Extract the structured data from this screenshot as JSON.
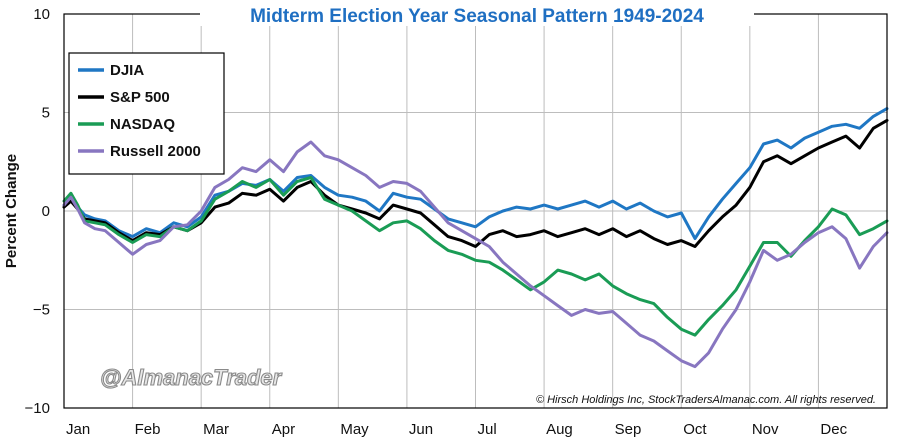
{
  "chart_data": {
    "type": "line",
    "title": "Midterm Election Year Seasonal Pattern 1949-2024",
    "xlabel": "",
    "ylabel": "Percent Change",
    "ylim": [
      -10,
      10
    ],
    "yticks": [
      10,
      5,
      0,
      -5,
      -10
    ],
    "ytick_labels": [
      "10",
      "5",
      "0",
      "−5",
      "−10"
    ],
    "categories": [
      "Jan",
      "Feb",
      "Mar",
      "Apr",
      "May",
      "Jun",
      "Jul",
      "Aug",
      "Sep",
      "Oct",
      "Nov",
      "Dec"
    ],
    "x_range": [
      0,
      12
    ],
    "legend_position": "top-left",
    "annotation": "© Hirsch Holdings Inc, StockTradersAlmanac.com. All rights reserved.",
    "watermark": "@AlmanacTrader",
    "series": [
      {
        "name": "DJIA",
        "color": "#1f77c4",
        "x": [
          0,
          0.1,
          0.2,
          0.3,
          0.45,
          0.6,
          0.8,
          1.0,
          1.2,
          1.4,
          1.6,
          1.8,
          2.0,
          2.2,
          2.4,
          2.6,
          2.8,
          3.0,
          3.2,
          3.4,
          3.6,
          3.8,
          4.0,
          4.2,
          4.4,
          4.6,
          4.8,
          5.0,
          5.2,
          5.4,
          5.6,
          5.8,
          6.0,
          6.2,
          6.4,
          6.6,
          6.8,
          7.0,
          7.2,
          7.4,
          7.6,
          7.8,
          8.0,
          8.2,
          8.4,
          8.6,
          8.8,
          9.0,
          9.2,
          9.4,
          9.6,
          9.8,
          10.0,
          10.2,
          10.4,
          10.6,
          10.8,
          11.0,
          11.2,
          11.4,
          11.6,
          11.8,
          12.0
        ],
        "values": [
          0.3,
          0.8,
          0.2,
          -0.2,
          -0.4,
          -0.5,
          -1.0,
          -1.3,
          -0.9,
          -1.1,
          -0.6,
          -0.8,
          -0.3,
          0.8,
          1.0,
          1.4,
          1.3,
          1.6,
          1.0,
          1.7,
          1.8,
          1.2,
          0.8,
          0.7,
          0.5,
          0.0,
          0.9,
          0.7,
          0.6,
          0.1,
          -0.4,
          -0.6,
          -0.8,
          -0.3,
          0.0,
          0.2,
          0.1,
          0.3,
          0.1,
          0.3,
          0.5,
          0.2,
          0.5,
          0.1,
          0.4,
          0.0,
          -0.3,
          -0.1,
          -1.4,
          -0.3,
          0.6,
          1.4,
          2.2,
          3.4,
          3.6,
          3.2,
          3.7,
          4.0,
          4.3,
          4.4,
          4.2,
          4.8,
          5.2
        ]
      },
      {
        "name": "S&P 500",
        "color": "#000000",
        "x": [
          0,
          0.1,
          0.2,
          0.3,
          0.45,
          0.6,
          0.8,
          1.0,
          1.2,
          1.4,
          1.6,
          1.8,
          2.0,
          2.2,
          2.4,
          2.6,
          2.8,
          3.0,
          3.2,
          3.4,
          3.6,
          3.8,
          4.0,
          4.2,
          4.4,
          4.6,
          4.8,
          5.0,
          5.2,
          5.4,
          5.6,
          5.8,
          6.0,
          6.2,
          6.4,
          6.6,
          6.8,
          7.0,
          7.2,
          7.4,
          7.6,
          7.8,
          8.0,
          8.2,
          8.4,
          8.6,
          8.8,
          9.0,
          9.2,
          9.4,
          9.6,
          9.8,
          10.0,
          10.2,
          10.4,
          10.6,
          10.8,
          11.0,
          11.2,
          11.4,
          11.6,
          11.8,
          12.0
        ],
        "values": [
          0.2,
          0.5,
          0.1,
          -0.4,
          -0.5,
          -0.6,
          -1.1,
          -1.5,
          -1.1,
          -1.2,
          -0.8,
          -1.0,
          -0.6,
          0.2,
          0.4,
          0.9,
          0.8,
          1.1,
          0.5,
          1.2,
          1.5,
          0.8,
          0.3,
          0.1,
          -0.1,
          -0.4,
          0.3,
          0.1,
          -0.1,
          -0.7,
          -1.3,
          -1.5,
          -1.8,
          -1.2,
          -1.0,
          -1.3,
          -1.2,
          -1.0,
          -1.3,
          -1.1,
          -0.9,
          -1.2,
          -0.9,
          -1.3,
          -1.0,
          -1.4,
          -1.7,
          -1.5,
          -1.8,
          -1.0,
          -0.3,
          0.3,
          1.2,
          2.5,
          2.8,
          2.4,
          2.8,
          3.2,
          3.5,
          3.8,
          3.2,
          4.2,
          4.6
        ]
      },
      {
        "name": "NASDAQ",
        "color": "#1a9c55",
        "x": [
          0,
          0.1,
          0.2,
          0.3,
          0.45,
          0.6,
          0.8,
          1.0,
          1.2,
          1.4,
          1.6,
          1.8,
          2.0,
          2.2,
          2.4,
          2.6,
          2.8,
          3.0,
          3.2,
          3.4,
          3.6,
          3.8,
          4.0,
          4.2,
          4.4,
          4.6,
          4.8,
          5.0,
          5.2,
          5.4,
          5.6,
          5.8,
          6.0,
          6.2,
          6.4,
          6.6,
          6.8,
          7.0,
          7.2,
          7.4,
          7.6,
          7.8,
          8.0,
          8.2,
          8.4,
          8.6,
          8.8,
          9.0,
          9.2,
          9.4,
          9.6,
          9.8,
          10.0,
          10.2,
          10.4,
          10.6,
          10.8,
          11.0,
          11.2,
          11.4,
          11.6,
          11.8,
          12.0
        ],
        "values": [
          0.5,
          0.9,
          0.3,
          -0.5,
          -0.6,
          -0.7,
          -1.2,
          -1.6,
          -1.2,
          -1.3,
          -0.8,
          -1.0,
          -0.5,
          0.6,
          1.0,
          1.5,
          1.2,
          1.6,
          0.8,
          1.5,
          1.7,
          0.6,
          0.3,
          0.0,
          -0.5,
          -1.0,
          -0.6,
          -0.5,
          -0.9,
          -1.5,
          -2.0,
          -2.2,
          -2.5,
          -2.6,
          -3.0,
          -3.5,
          -4.0,
          -3.6,
          -3.0,
          -3.2,
          -3.5,
          -3.2,
          -3.8,
          -4.2,
          -4.5,
          -4.7,
          -5.4,
          -6.0,
          -6.3,
          -5.5,
          -4.8,
          -4.0,
          -2.8,
          -1.6,
          -1.6,
          -2.3,
          -1.5,
          -0.8,
          0.1,
          -0.2,
          -1.2,
          -0.9,
          -0.5
        ]
      },
      {
        "name": "Russell 2000",
        "color": "#8876c0",
        "x": [
          0,
          0.1,
          0.2,
          0.3,
          0.45,
          0.6,
          0.8,
          1.0,
          1.2,
          1.4,
          1.6,
          1.8,
          2.0,
          2.2,
          2.4,
          2.6,
          2.8,
          3.0,
          3.2,
          3.4,
          3.6,
          3.8,
          4.0,
          4.2,
          4.4,
          4.6,
          4.8,
          5.0,
          5.2,
          5.4,
          5.6,
          5.8,
          6.0,
          6.2,
          6.4,
          6.6,
          6.8,
          7.0,
          7.2,
          7.4,
          7.6,
          7.8,
          8.0,
          8.2,
          8.4,
          8.6,
          8.8,
          9.0,
          9.2,
          9.4,
          9.6,
          9.8,
          10.0,
          10.2,
          10.4,
          10.6,
          10.8,
          11.0,
          11.2,
          11.4,
          11.6,
          11.8,
          12.0
        ],
        "values": [
          0.3,
          0.7,
          0.1,
          -0.6,
          -0.9,
          -1.0,
          -1.6,
          -2.2,
          -1.7,
          -1.5,
          -0.8,
          -0.7,
          0.0,
          1.2,
          1.6,
          2.2,
          2.0,
          2.6,
          2.0,
          3.0,
          3.5,
          2.8,
          2.6,
          2.2,
          1.8,
          1.2,
          1.5,
          1.4,
          1.0,
          0.2,
          -0.6,
          -1.0,
          -1.4,
          -1.8,
          -2.6,
          -3.2,
          -3.8,
          -4.3,
          -4.8,
          -5.3,
          -5.0,
          -5.2,
          -5.1,
          -5.7,
          -6.3,
          -6.6,
          -7.1,
          -7.6,
          -7.9,
          -7.2,
          -6.0,
          -5.0,
          -3.6,
          -2.0,
          -2.5,
          -2.2,
          -1.6,
          -1.1,
          -0.8,
          -1.4,
          -2.9,
          -1.8,
          -1.1
        ]
      }
    ]
  }
}
